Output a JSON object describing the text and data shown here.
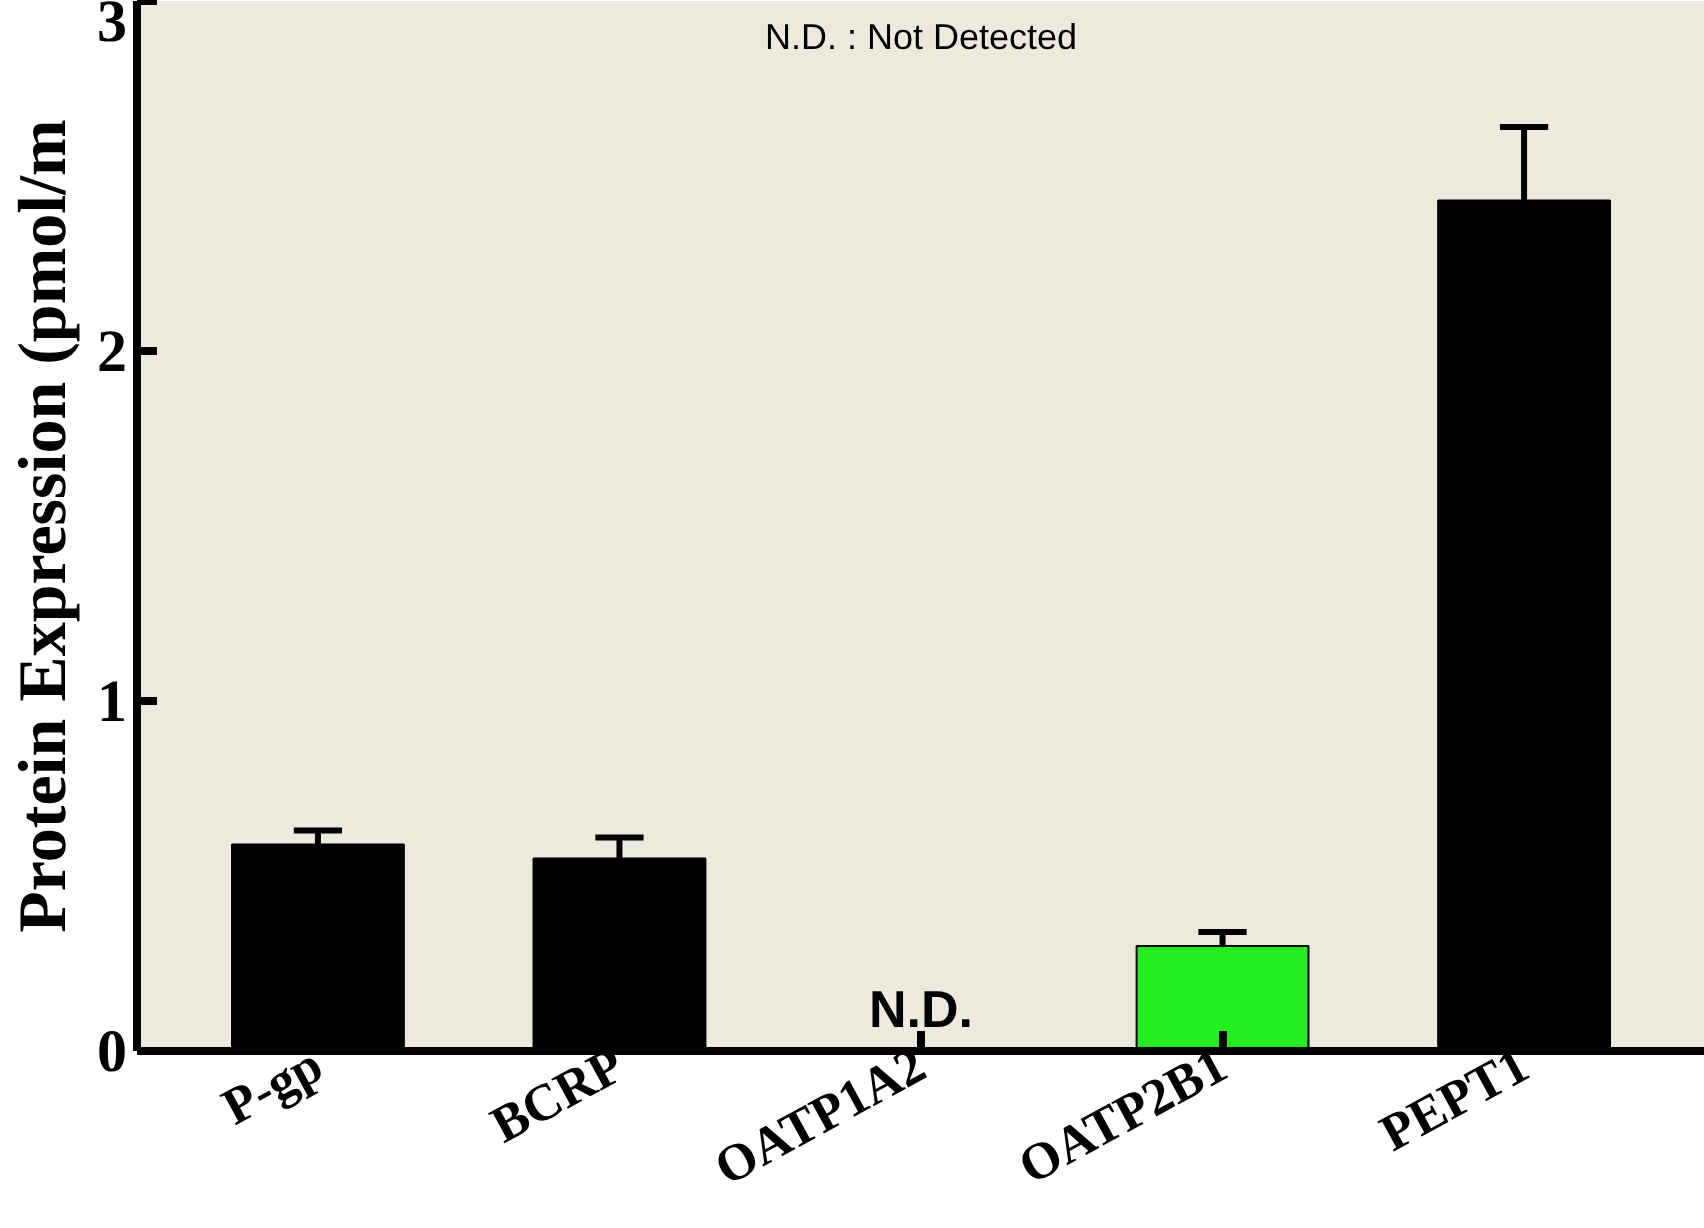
{
  "chart_data": {
    "type": "bar",
    "ylabel": "Protein Expression (pmol/m",
    "categories": [
      "P-gp",
      "BCRP",
      "OATP1A2",
      "OATP2B1",
      "PEPT1"
    ],
    "values": [
      0.59,
      0.55,
      null,
      0.3,
      2.43
    ],
    "colors": [
      "#000000",
      "#000000",
      "#000000",
      "#22ee22",
      "#000000"
    ],
    "errors": [
      [
        0.59,
        0.63
      ],
      [
        0.55,
        0.61
      ],
      null,
      [
        0.3,
        0.34
      ],
      [
        2.43,
        2.64
      ]
    ],
    "ylim": [
      0,
      3
    ],
    "yticks": [
      0,
      1,
      2,
      3
    ],
    "grid": false,
    "annotations": [
      "N.D. : Not Detected",
      "N.D."
    ]
  }
}
